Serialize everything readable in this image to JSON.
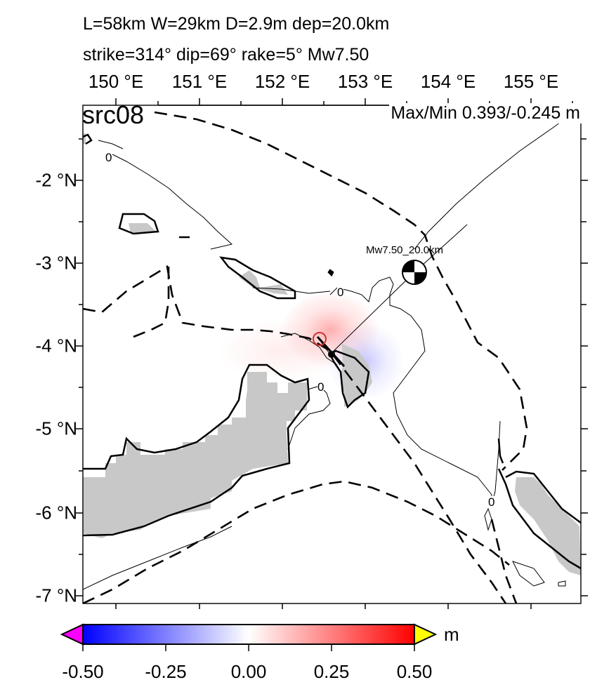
{
  "header": {
    "line1": "L=58km W=29km D=2.9m dep=20.0km",
    "line2": "strike=314° dip=69° rake=5° Mw7.50"
  },
  "map": {
    "source_label": "src08",
    "maxmin": "Max/Min 0.393/-0.245 m",
    "lon_labels": [
      "150 °E",
      "151 °E",
      "152 °E",
      "153 °E",
      "154 °E",
      "155 °E"
    ],
    "lat_labels": [
      "-2 °N",
      "-3 °N",
      "-4 °N",
      "-5 °N",
      "-6 °N",
      "-7 °N"
    ],
    "contour_labels": [
      "0",
      "0",
      "0",
      "0"
    ],
    "beachball_label": "Mw7.50_20.0km",
    "land_color": "#c8c8c8",
    "positive_color": "#ff0000",
    "negative_color": "#0000ff"
  },
  "colorbar": {
    "ticks": [
      "-0.50",
      "-0.25",
      "0.00",
      "0.25",
      "0.50"
    ],
    "unit": "m",
    "low_overflow_color": "#ff00ff",
    "high_overflow_color": "#ffff00"
  }
}
